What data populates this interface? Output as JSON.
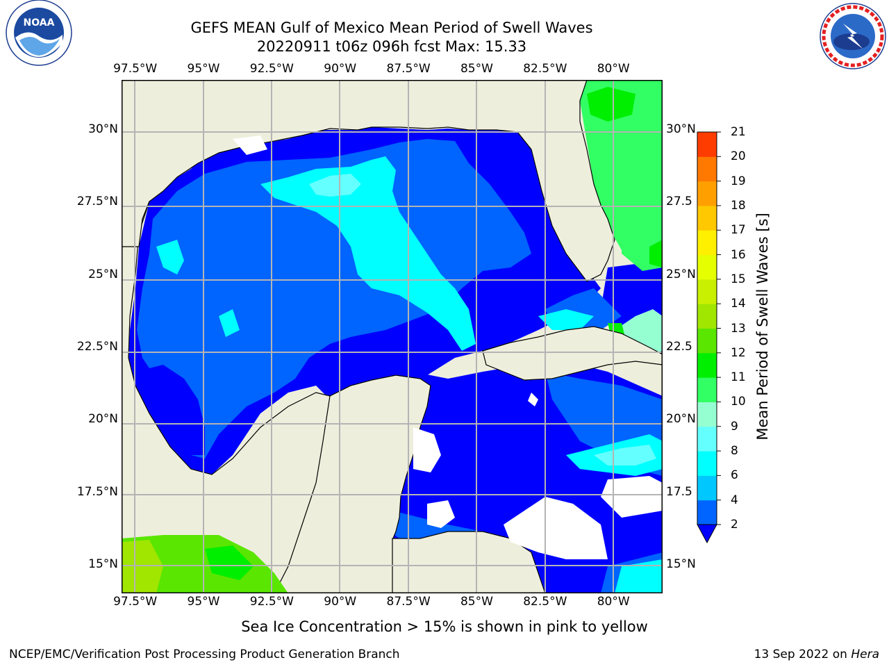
{
  "title": {
    "line1": "GEFS MEAN Gulf of Mexico Mean Period of Swell Waves",
    "line2": "20220911 t06z 096h fcst   Max: 15.33"
  },
  "logos": {
    "noaa": {
      "icon": "noaa-logo",
      "text": "NOAA",
      "ring_text": "NATIONAL OCEANIC AND ATMOSPHERIC ADMINISTRATION · U.S. DEPARTMENT OF COMMERCE"
    },
    "nws": {
      "icon": "nws-logo",
      "ring_text": "NATIONAL WEATHER SERVICE"
    }
  },
  "map": {
    "lon_ticks": [
      {
        "value": -97.5,
        "label": "97.5°W"
      },
      {
        "value": -95,
        "label": "95°W"
      },
      {
        "value": -92.5,
        "label": "92.5°W"
      },
      {
        "value": -90,
        "label": "90°W"
      },
      {
        "value": -87.5,
        "label": "87.5°W"
      },
      {
        "value": -85,
        "label": "85°W"
      },
      {
        "value": -82.5,
        "label": "82.5°W"
      },
      {
        "value": -80,
        "label": "80°W"
      }
    ],
    "lat_ticks_left": [
      {
        "value": 30,
        "label": "30°N"
      },
      {
        "value": 27.5,
        "label": "27.5°N"
      },
      {
        "value": 25,
        "label": "25°N"
      },
      {
        "value": 22.5,
        "label": "22.5°N"
      },
      {
        "value": 20,
        "label": "20°N"
      },
      {
        "value": 17.5,
        "label": "17.5°N"
      },
      {
        "value": 15,
        "label": "15°N"
      }
    ],
    "lat_ticks_right": [
      {
        "value": 30,
        "label": "30°N"
      },
      {
        "value": 27.5,
        "label": "27.5"
      },
      {
        "value": 25,
        "label": "25°N"
      },
      {
        "value": 22.5,
        "label": "22.5"
      },
      {
        "value": 20,
        "label": "20°N"
      },
      {
        "value": 17.5,
        "label": "17.5"
      },
      {
        "value": 15,
        "label": "15°N"
      }
    ],
    "lon_range": [
      -98,
      -78.2
    ],
    "lat_range": [
      14,
      31.7
    ],
    "grid": true,
    "colors": {
      "land": "#eeeedd",
      "coast": "#000000",
      "grid": "#b4b4b4",
      "nodata": "#ffffff"
    }
  },
  "colorbar": {
    "title": "Mean Period of Swell Waves [s]",
    "levels": [
      2,
      4,
      6,
      8,
      9,
      10,
      11,
      12,
      13,
      14,
      15,
      16,
      17,
      18,
      19,
      20,
      21
    ],
    "colors": [
      "#0064ff",
      "#00c8ff",
      "#00ffff",
      "#64ffff",
      "#96ffd2",
      "#32ff64",
      "#00ee00",
      "#5ae600",
      "#a0e600",
      "#c8f000",
      "#e6ff00",
      "#fff000",
      "#ffc800",
      "#ffa000",
      "#ff7800",
      "#ff3c00",
      "#ff0000"
    ],
    "under_color": "#0000ff",
    "extend": "min"
  },
  "footer": {
    "note": "Sea Ice Concentration > 15% is shown in pink to yellow",
    "credit": "NCEP/EMC/Verification Post Processing Product Generation Branch",
    "date": "13 Sep 2022 on ",
    "machine": "Hera"
  }
}
